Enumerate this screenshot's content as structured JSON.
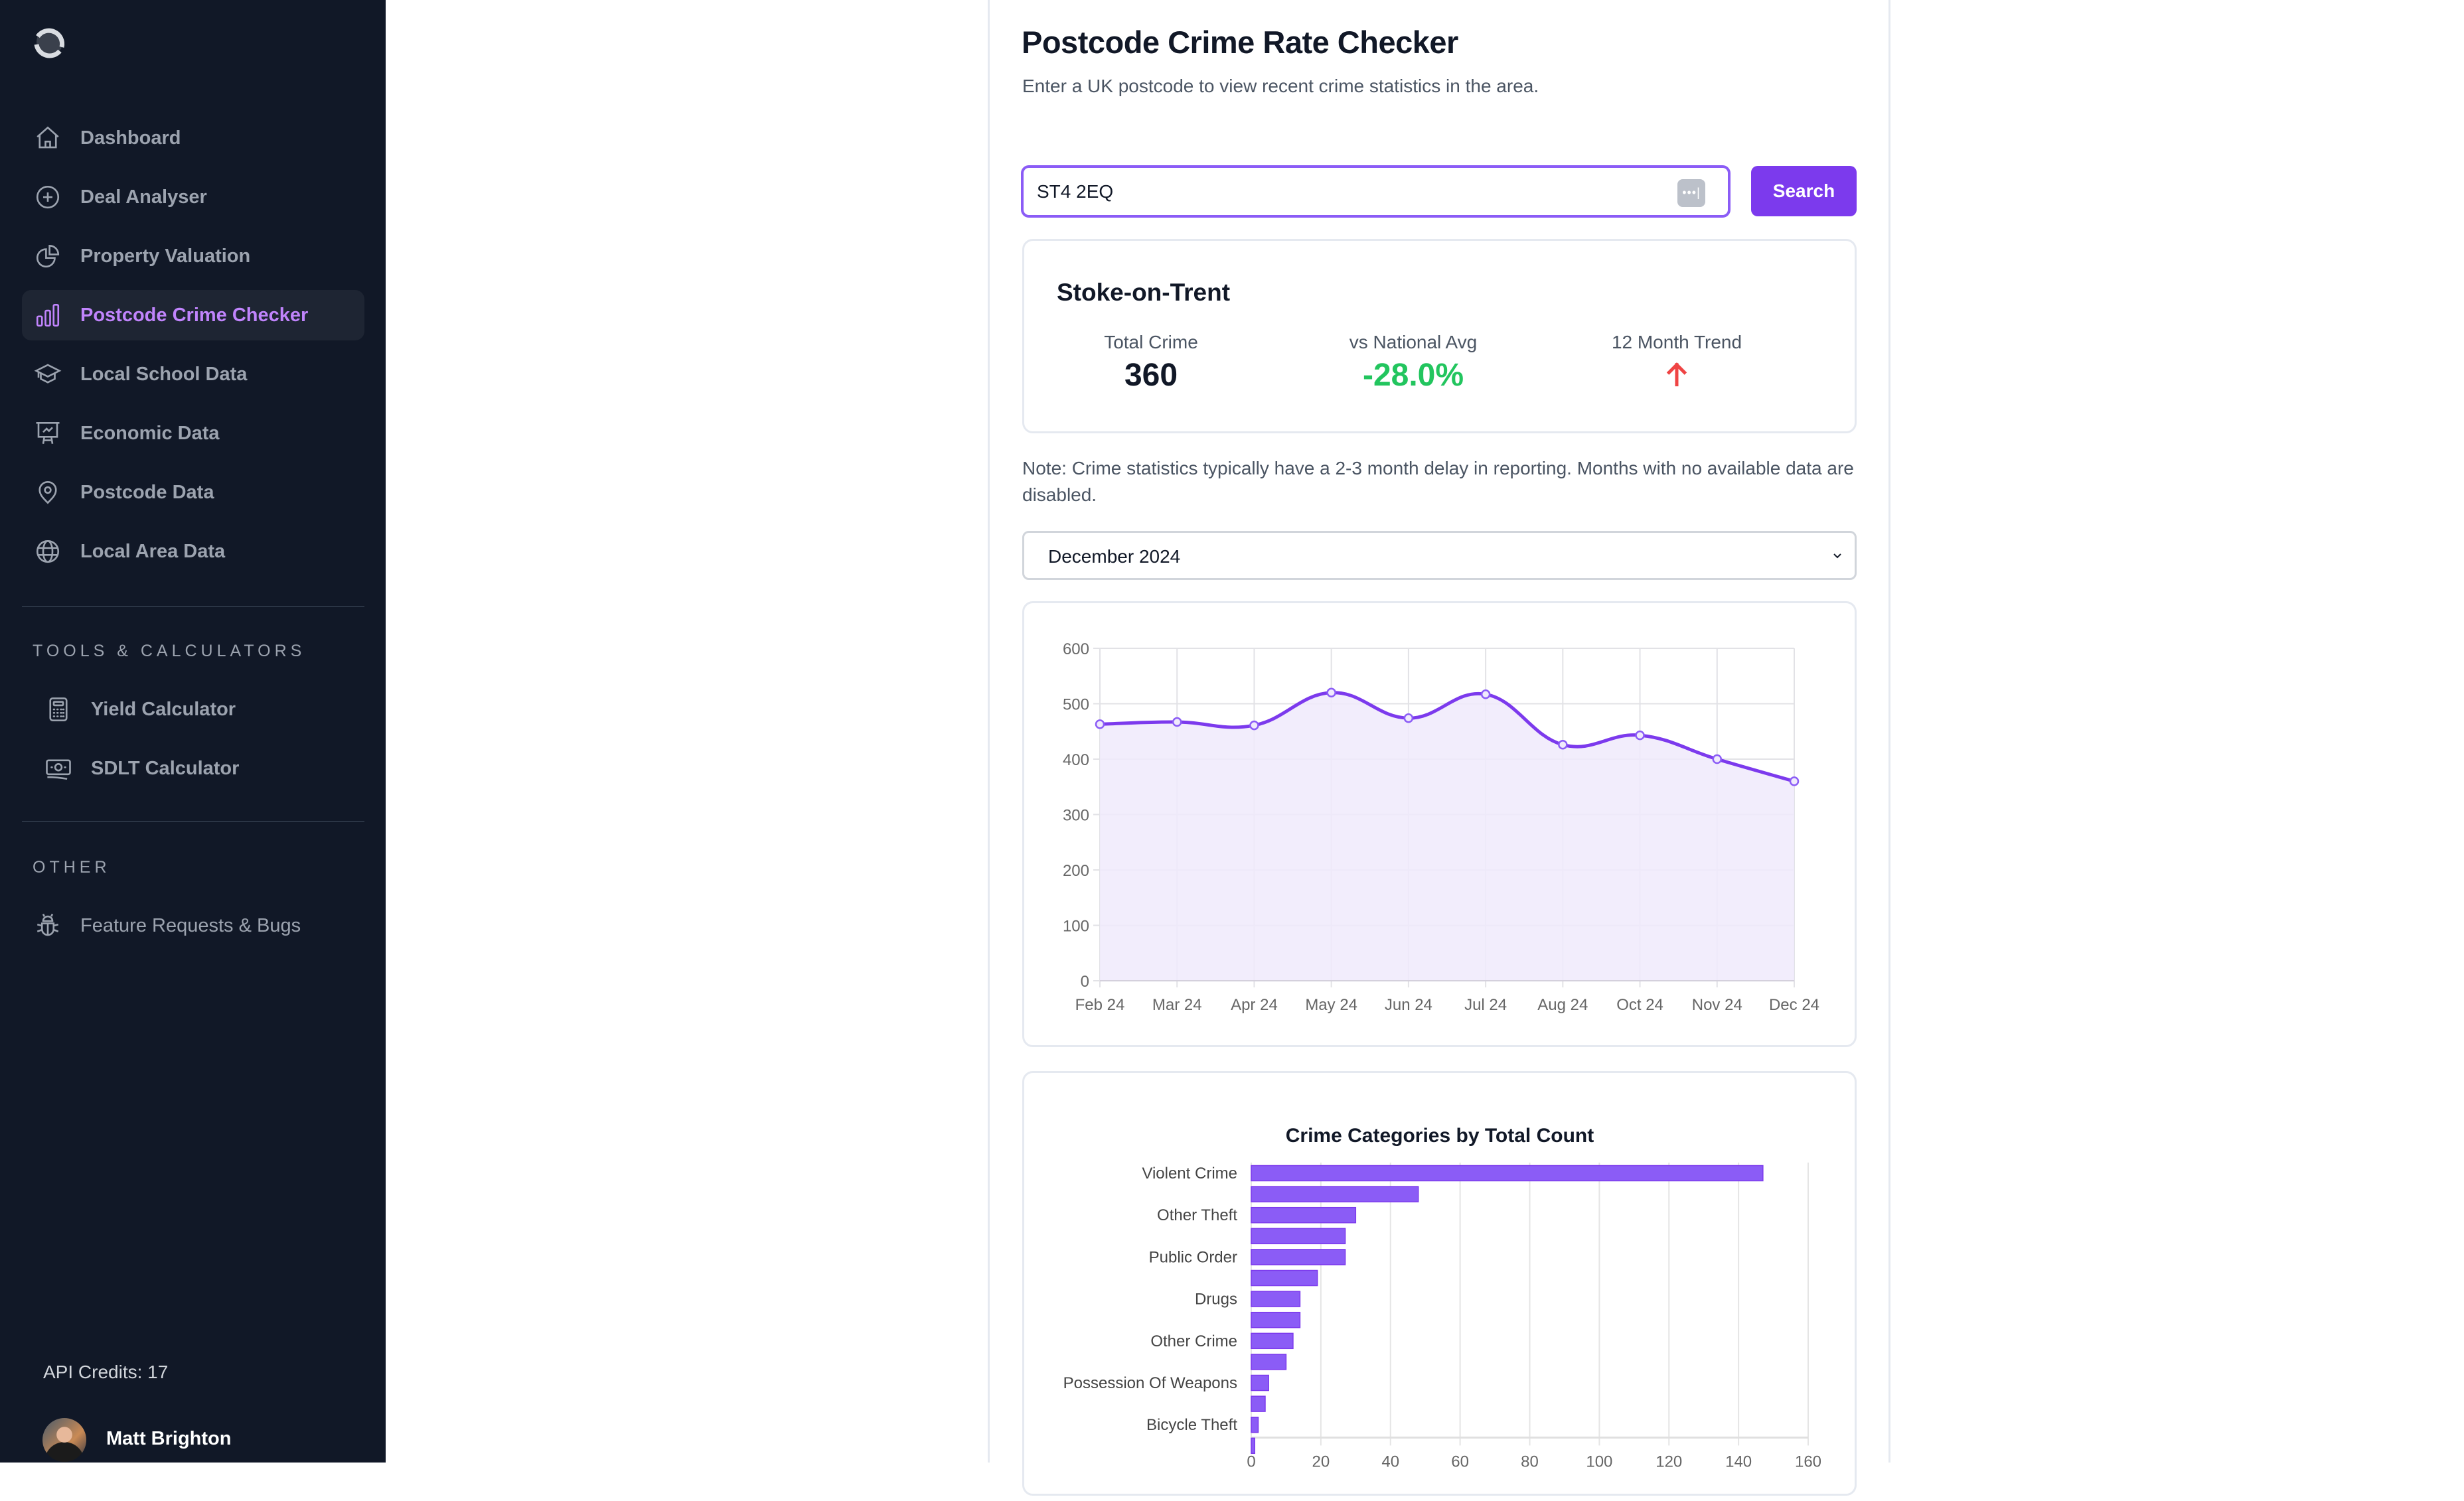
{
  "sidebar": {
    "logo": "app-logo",
    "nav": [
      {
        "label": "Dashboard",
        "icon": "home-icon"
      },
      {
        "label": "Deal Analyser",
        "icon": "plus-circle-icon"
      },
      {
        "label": "Property Valuation",
        "icon": "pie-chart-icon"
      },
      {
        "label": "Postcode Crime Checker",
        "icon": "bar-chart-icon",
        "active": true
      },
      {
        "label": "Local School Data",
        "icon": "graduation-cap-icon"
      },
      {
        "label": "Economic Data",
        "icon": "presentation-chart-icon"
      },
      {
        "label": "Postcode Data",
        "icon": "map-pin-icon"
      },
      {
        "label": "Local Area Data",
        "icon": "globe-icon"
      }
    ],
    "tools_title": "TOOLS & CALCULATORS",
    "tools": [
      {
        "label": "Yield Calculator",
        "icon": "calculator-icon"
      },
      {
        "label": "SDLT Calculator",
        "icon": "banknote-icon"
      }
    ],
    "other_title": "OTHER",
    "other": [
      {
        "label": "Feature Requests & Bugs",
        "icon": "bug-icon"
      }
    ],
    "credits": "API Credits: 17",
    "user_name": "Matt Brighton"
  },
  "main": {
    "title": "Postcode Crime Rate Checker",
    "subtitle": "Enter a UK postcode to view recent crime statistics in the area.",
    "search": {
      "value": "ST4 2EQ",
      "button": "Search",
      "autofill_icon": "•••|"
    },
    "stats": {
      "area": "Stoke-on-Trent",
      "total_label": "Total Crime",
      "total_value": "360",
      "national_label": "vs National Avg",
      "national_value": "-28.0%",
      "trend_label": "12 Month Trend",
      "trend_direction": "up"
    },
    "note": "Note: Crime statistics typically have a 2-3 month delay in reporting. Months with no available data are disabled.",
    "month_select": {
      "selected": "December 2024"
    }
  },
  "colors": {
    "accent": "#7c3aed",
    "accent_light": "#c084fc",
    "line": "#7c3aed",
    "fill": "#f0eafc",
    "bar": "#8b5cf6",
    "positive": "#22c55e",
    "negative": "#ef4444",
    "sidebar_bg": "#111827"
  },
  "chart_data": [
    {
      "type": "area",
      "title": "",
      "categories": [
        "Feb 24",
        "Mar 24",
        "Apr 24",
        "May 24",
        "Jun 24",
        "Jul 24",
        "Aug 24",
        "Oct 24",
        "Nov 24",
        "Dec 24"
      ],
      "values": [
        463,
        467,
        461,
        520,
        474,
        517,
        426,
        443,
        400,
        360
      ],
      "ylim": [
        0,
        600
      ],
      "yticks": [
        0,
        100,
        200,
        300,
        400,
        500,
        600
      ],
      "grid": true,
      "legend": "none",
      "xlabel": "",
      "ylabel": ""
    },
    {
      "type": "bar",
      "orientation": "horizontal",
      "title": "Crime Categories by Total Count",
      "categories": [
        "Violent Crime",
        "",
        "Other Theft",
        "",
        "Public Order",
        "",
        "Drugs",
        "",
        "Other Crime",
        "",
        "Possession Of Weapons",
        "",
        "Bicycle Theft",
        ""
      ],
      "values": [
        147,
        48,
        30,
        27,
        27,
        19,
        14,
        14,
        12,
        10,
        5,
        4,
        2,
        1
      ],
      "xlim": [
        0,
        160
      ],
      "xticks": [
        0,
        20,
        40,
        60,
        80,
        100,
        120,
        140,
        160
      ],
      "grid": true,
      "legend": "none",
      "xlabel": "",
      "ylabel": ""
    }
  ]
}
